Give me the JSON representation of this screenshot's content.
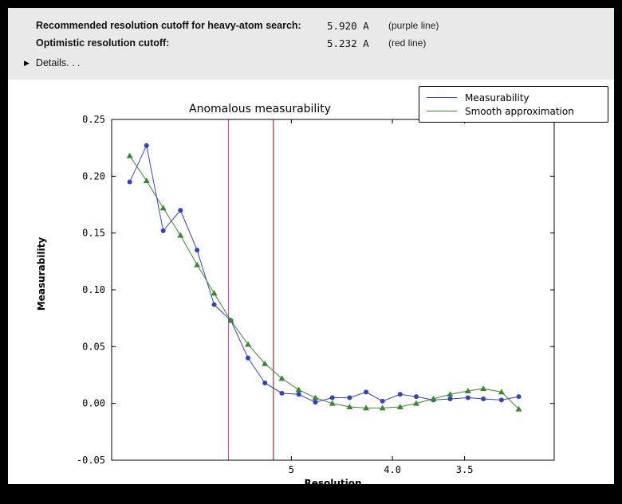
{
  "colors": {
    "frame": "#000000",
    "panel_bg": "#e9e9e9",
    "figure_bg": "#ffffff",
    "measurability_line": "#3242c8",
    "smooth_line": "#358a2e",
    "purple_cutoff_line": "#bf52bf",
    "red_cutoff_line": "#993322"
  },
  "info": {
    "row1_label": "Recommended resolution cutoff for heavy-atom search:",
    "row1_value": "5.920 A",
    "row1_note": "(purple line)",
    "row2_label": "Optimistic resolution cutoff:",
    "row2_value": "5.232 A",
    "row2_note": "(red line)",
    "details_label": "Details. . ."
  },
  "chart_data": {
    "type": "line",
    "title": "Anomalous measurability",
    "xlabel": "Resolution",
    "ylabel": "Measurability",
    "x_scale": "reciprocal-resolution",
    "x_range_resolution": [
      9.0,
      3.03
    ],
    "ylim": [
      -0.05,
      0.25
    ],
    "yticks": [
      -0.05,
      0.0,
      0.05,
      0.1,
      0.15,
      0.2,
      0.25
    ],
    "xticks": [
      {
        "value": 5.0,
        "label": "5"
      },
      {
        "value": 4.0,
        "label": "4.0"
      },
      {
        "value": 3.5,
        "label": "3.5"
      }
    ],
    "grid": false,
    "legend_position": "upper right",
    "x_resolution": [
      8.33,
      7.79,
      7.32,
      6.89,
      6.52,
      6.18,
      5.88,
      5.6,
      5.35,
      5.12,
      4.91,
      4.72,
      4.54,
      4.37,
      4.22,
      4.08,
      3.94,
      3.82,
      3.7,
      3.59,
      3.48,
      3.39,
      3.29,
      3.2
    ],
    "series": [
      {
        "name": "Measurability",
        "color": "#3242c8",
        "marker": "circle",
        "values": [
          0.195,
          0.227,
          0.152,
          0.17,
          0.135,
          0.087,
          0.073,
          0.04,
          0.018,
          0.009,
          0.008,
          0.001,
          0.005,
          0.005,
          0.01,
          0.002,
          0.008,
          0.006,
          0.003,
          0.004,
          0.005,
          0.004,
          0.003,
          0.006
        ]
      },
      {
        "name": "Smooth approximation",
        "color": "#358a2e",
        "marker": "triangle",
        "values": [
          0.218,
          0.196,
          0.172,
          0.148,
          0.122,
          0.097,
          0.073,
          0.052,
          0.035,
          0.022,
          0.012,
          0.005,
          0.0,
          -0.003,
          -0.004,
          -0.004,
          -0.003,
          0.0,
          0.004,
          0.008,
          0.011,
          0.013,
          0.01,
          -0.005
        ]
      }
    ],
    "vlines": [
      {
        "resolution": 5.92,
        "color": "#bf52bf",
        "name": "purple-cutoff-line"
      },
      {
        "resolution": 5.232,
        "color": "#993322",
        "name": "red-cutoff-line"
      }
    ]
  }
}
